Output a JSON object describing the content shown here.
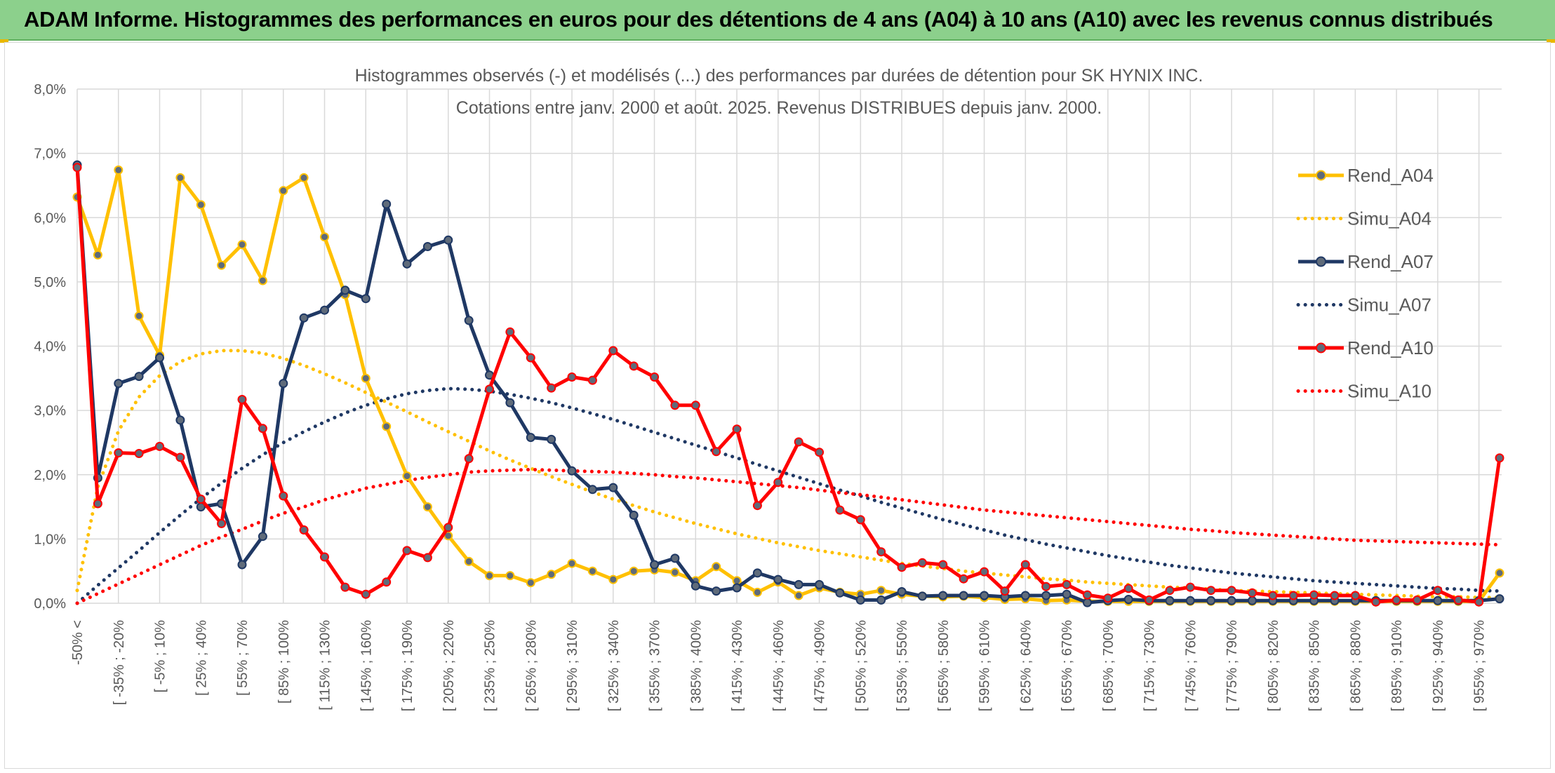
{
  "header": {
    "title": "ADAM Informe. Histogrammes des performances en euros pour des détentions de 4 ans (A04) à 10 ans (A10) avec les revenus connus distribués"
  },
  "chart_data": {
    "type": "line",
    "title": "Histogrammes observés (-) et modélisés (...) des performances par durées de détention pour SK HYNIX INC.",
    "subtitle": "Cotations entre janv. 2000 et août. 2025. Revenus DISTRIBUES depuis janv. 2000.",
    "xlabel": "",
    "ylabel": "",
    "ylim": [
      0,
      8
    ],
    "y_unit": "%",
    "y_ticks": [
      "0,0%",
      "1,0%",
      "2,0%",
      "3,0%",
      "4,0%",
      "5,0%",
      "6,0%",
      "7,0%",
      "8,0%"
    ],
    "grid": true,
    "legend_position": "right",
    "x_tick_labels": [
      "-50% <",
      "[ -35% ; -20%",
      "[ -5% ; 10%",
      "[ 25% ; 40%",
      "[ 55% ; 70%",
      "[ 85% ; 100%",
      "[ 115% ; 130%",
      "[ 145% ; 160%",
      "[ 175% ; 190%",
      "[ 205% ; 220%",
      "[ 235% ; 250%",
      "[ 265% ; 280%",
      "[ 295% ; 310%",
      "[ 325% ; 340%",
      "[ 355% ; 370%",
      "[ 385% ; 400%",
      "[ 415% ; 430%",
      "[ 445% ; 460%",
      "[ 475% ; 490%",
      "[ 505% ; 520%",
      "[ 535% ; 550%",
      "[ 565% ; 580%",
      "[ 595% ; 610%",
      "[ 625% ; 640%",
      "[ 655% ; 670%",
      "[ 685% ; 700%",
      "[ 715% ; 730%",
      "[ 745% ; 760%",
      "[ 775% ; 790%",
      "[ 805% ; 820%",
      "[ 835% ; 850%",
      "[ 865% ; 880%",
      "[ 895% ; 910%",
      "[ 925% ; 940%",
      "[ 955% ; 970%"
    ],
    "x_tick_every": 2,
    "n_bins": 70,
    "series": [
      {
        "name": "Rend_A04",
        "style": "solid",
        "markers": true,
        "color": "#ffc000",
        "values": [
          6.32,
          5.42,
          6.74,
          4.47,
          3.86,
          6.62,
          6.2,
          5.26,
          5.58,
          5.02,
          6.42,
          6.62,
          5.7,
          4.8,
          3.5,
          2.75,
          1.98,
          1.5,
          1.05,
          0.65,
          0.43,
          0.43,
          0.32,
          0.45,
          0.62,
          0.5,
          0.37,
          0.5,
          0.52,
          0.48,
          0.35,
          0.57,
          0.35,
          0.17,
          0.33,
          0.12,
          0.24,
          0.17,
          0.14,
          0.2,
          0.14,
          0.11,
          0.1,
          0.11,
          0.09,
          0.06,
          0.07,
          0.04,
          0.05,
          0.03,
          0.03,
          0.03,
          0.03,
          0.03,
          0.03,
          0.03,
          0.03,
          0.03,
          0.03,
          0.03,
          0.03,
          0.03,
          0.03,
          0.03,
          0.03,
          0.03,
          0.03,
          0.03,
          0.03,
          0.47
        ]
      },
      {
        "name": "Simu_A04",
        "style": "dotted",
        "markers": false,
        "color": "#ffc000",
        "values": [
          0.2,
          1.81,
          2.68,
          3.21,
          3.54,
          3.76,
          3.88,
          3.93,
          3.93,
          3.89,
          3.81,
          3.7,
          3.57,
          3.43,
          3.28,
          3.13,
          2.98,
          2.82,
          2.67,
          2.52,
          2.37,
          2.23,
          2.1,
          1.97,
          1.85,
          1.73,
          1.62,
          1.52,
          1.42,
          1.33,
          1.24,
          1.16,
          1.08,
          1.01,
          0.94,
          0.88,
          0.82,
          0.77,
          0.72,
          0.67,
          0.62,
          0.58,
          0.54,
          0.5,
          0.47,
          0.44,
          0.41,
          0.38,
          0.36,
          0.33,
          0.31,
          0.29,
          0.27,
          0.25,
          0.24,
          0.22,
          0.2,
          0.19,
          0.18,
          0.17,
          0.16,
          0.15,
          0.14,
          0.13,
          0.12,
          0.11,
          0.1,
          0.1,
          0.09,
          0.09
        ]
      },
      {
        "name": "Rend_A07",
        "style": "solid",
        "markers": true,
        "color": "#1f3864",
        "values": [
          6.82,
          1.95,
          3.42,
          3.53,
          3.82,
          2.85,
          1.5,
          1.55,
          0.6,
          1.04,
          3.42,
          4.44,
          4.56,
          4.87,
          4.74,
          6.21,
          5.28,
          5.55,
          5.65,
          4.4,
          3.55,
          3.12,
          2.58,
          2.55,
          2.06,
          1.77,
          1.8,
          1.37,
          0.6,
          0.7,
          0.27,
          0.19,
          0.24,
          0.47,
          0.37,
          0.29,
          0.29,
          0.16,
          0.05,
          0.05,
          0.18,
          0.11,
          0.12,
          0.12,
          0.12,
          0.1,
          0.12,
          0.12,
          0.14,
          0.01,
          0.04,
          0.06,
          0.04,
          0.04,
          0.04,
          0.04,
          0.04,
          0.04,
          0.04,
          0.04,
          0.04,
          0.04,
          0.04,
          0.04,
          0.04,
          0.04,
          0.04,
          0.04,
          0.04,
          0.07
        ]
      },
      {
        "name": "Simu_A07",
        "style": "dotted",
        "markers": false,
        "color": "#1f3864",
        "values": [
          0.0,
          0.28,
          0.55,
          0.82,
          1.1,
          1.37,
          1.63,
          1.87,
          2.1,
          2.31,
          2.5,
          2.67,
          2.82,
          2.96,
          3.08,
          3.18,
          3.26,
          3.31,
          3.34,
          3.33,
          3.3,
          3.25,
          3.19,
          3.12,
          3.04,
          2.95,
          2.86,
          2.76,
          2.66,
          2.56,
          2.46,
          2.36,
          2.26,
          2.16,
          2.06,
          1.96,
          1.86,
          1.76,
          1.67,
          1.57,
          1.48,
          1.39,
          1.3,
          1.22,
          1.14,
          1.06,
          0.99,
          0.92,
          0.86,
          0.8,
          0.74,
          0.69,
          0.64,
          0.59,
          0.55,
          0.51,
          0.47,
          0.44,
          0.41,
          0.38,
          0.35,
          0.33,
          0.31,
          0.29,
          0.27,
          0.25,
          0.23,
          0.22,
          0.2,
          0.19
        ]
      },
      {
        "name": "Rend_A10",
        "style": "solid",
        "markers": true,
        "color": "#ff0000",
        "values": [
          6.78,
          1.55,
          2.34,
          2.33,
          2.44,
          2.27,
          1.62,
          1.24,
          3.17,
          2.72,
          1.67,
          1.14,
          0.72,
          0.25,
          0.14,
          0.33,
          0.82,
          0.71,
          1.18,
          2.25,
          3.33,
          4.22,
          3.82,
          3.35,
          3.52,
          3.47,
          3.93,
          3.69,
          3.52,
          3.08,
          3.08,
          2.36,
          2.71,
          1.52,
          1.88,
          2.51,
          2.35,
          1.45,
          1.3,
          0.8,
          0.56,
          0.63,
          0.6,
          0.38,
          0.49,
          0.19,
          0.6,
          0.26,
          0.29,
          0.13,
          0.08,
          0.23,
          0.05,
          0.2,
          0.25,
          0.2,
          0.2,
          0.16,
          0.12,
          0.12,
          0.13,
          0.12,
          0.12,
          0.02,
          0.05,
          0.05,
          0.2,
          0.05,
          0.02,
          2.26
        ]
      },
      {
        "name": "Simu_A10",
        "style": "dotted",
        "markers": false,
        "color": "#ff0000",
        "values": [
          0.0,
          0.15,
          0.3,
          0.45,
          0.6,
          0.75,
          0.9,
          1.03,
          1.15,
          1.28,
          1.4,
          1.5,
          1.61,
          1.7,
          1.79,
          1.85,
          1.91,
          1.96,
          2.0,
          2.04,
          2.06,
          2.07,
          2.08,
          2.07,
          2.06,
          2.05,
          2.04,
          2.02,
          2.0,
          1.97,
          1.95,
          1.92,
          1.89,
          1.86,
          1.83,
          1.8,
          1.76,
          1.72,
          1.69,
          1.65,
          1.61,
          1.57,
          1.53,
          1.49,
          1.45,
          1.42,
          1.39,
          1.36,
          1.33,
          1.3,
          1.27,
          1.24,
          1.21,
          1.18,
          1.15,
          1.13,
          1.1,
          1.08,
          1.06,
          1.04,
          1.02,
          1.0,
          0.98,
          0.97,
          0.96,
          0.95,
          0.94,
          0.93,
          0.92,
          0.91
        ]
      }
    ]
  }
}
